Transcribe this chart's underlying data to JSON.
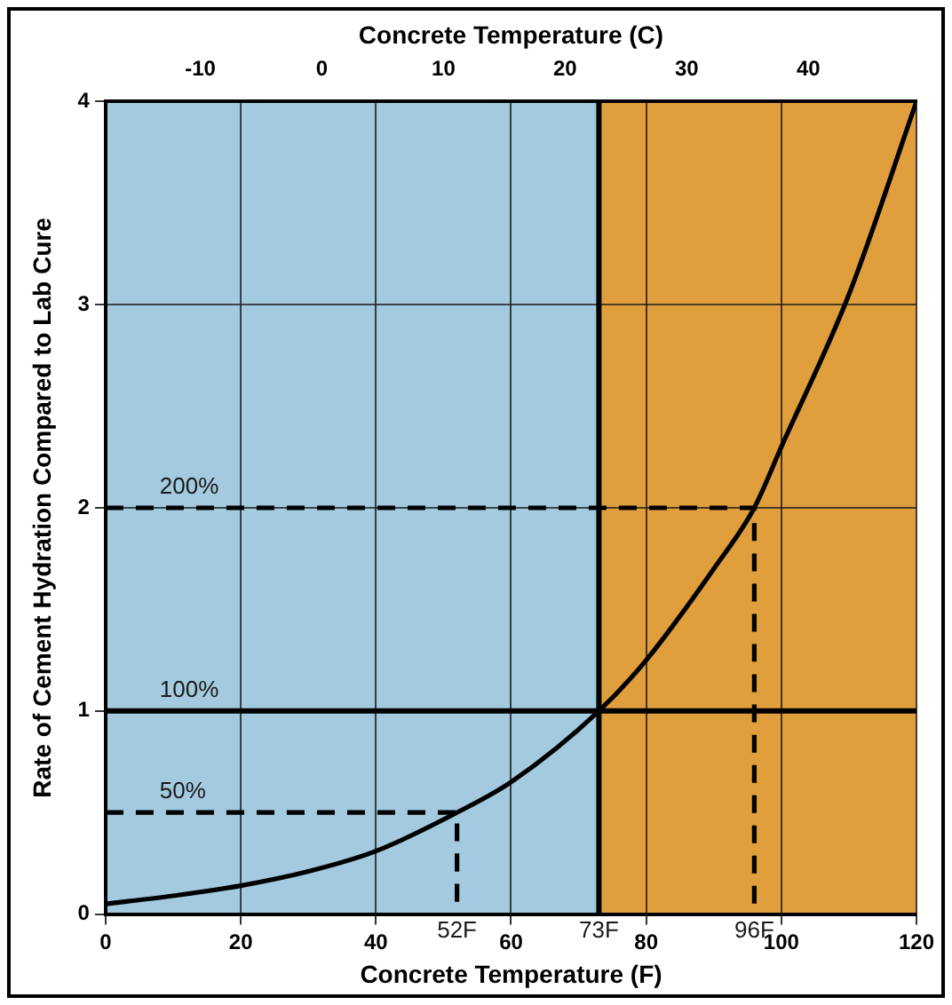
{
  "chart_data": {
    "type": "line",
    "xlabel": "Concrete Temperature (F)",
    "x2label": "Concrete Temperature (C)",
    "ylabel": "Rate of Cement Hydration Compared to Lab Cure",
    "xlim": [
      0,
      120
    ],
    "xticks": [
      0,
      20,
      40,
      60,
      80,
      100,
      120
    ],
    "x2lim": [
      -17.78,
      48.89
    ],
    "x2ticks": [
      -10,
      0,
      10,
      20,
      30,
      40
    ],
    "ylim": [
      0,
      4
    ],
    "yticks": [
      0,
      1,
      2,
      3,
      4
    ],
    "series": [
      {
        "color": "#000000",
        "line_style": "solid",
        "x": [
          0,
          10,
          20,
          30,
          40,
          52,
          60,
          73,
          80,
          90,
          96,
          100,
          110,
          120
        ],
        "values": [
          0.05,
          0.09,
          0.14,
          0.21,
          0.31,
          0.5,
          0.65,
          1,
          1.25,
          1.7,
          2,
          2.3,
          3.05,
          4
        ]
      },
      {
        "color": "#000000",
        "line_style": "dashed",
        "x": [
          0,
          96,
          96
        ],
        "values": [
          2,
          2,
          0
        ]
      },
      {
        "color": "#000000",
        "line_style": "dashed",
        "x": [
          0,
          52,
          52
        ],
        "values": [
          0.5,
          0.5,
          0
        ]
      }
    ],
    "bands": [
      {
        "axis": "x",
        "from": 0,
        "to": 73,
        "color": "#a3cade"
      },
      {
        "axis": "x",
        "from": 73,
        "to": 120,
        "color": "#e09e3c"
      }
    ],
    "ref_lines": [
      {
        "axis": "y",
        "value": 1,
        "color": "#000000",
        "line_style": "solid"
      },
      {
        "axis": "x",
        "value": 73,
        "color": "#000000",
        "line_style": "solid"
      }
    ],
    "annotations": [
      {
        "text": "200%",
        "x": 8,
        "y": 2
      },
      {
        "text": "100%",
        "x": 8,
        "y": 1
      },
      {
        "text": "50%",
        "x": 8,
        "y": 0.5
      },
      {
        "text": "52F",
        "x": 52,
        "y": 0
      },
      {
        "text": "73F",
        "x": 73,
        "y": 0
      },
      {
        "text": "96F",
        "x": 96,
        "y": 0
      }
    ],
    "grid": true,
    "legend": false,
    "marker": "none"
  }
}
